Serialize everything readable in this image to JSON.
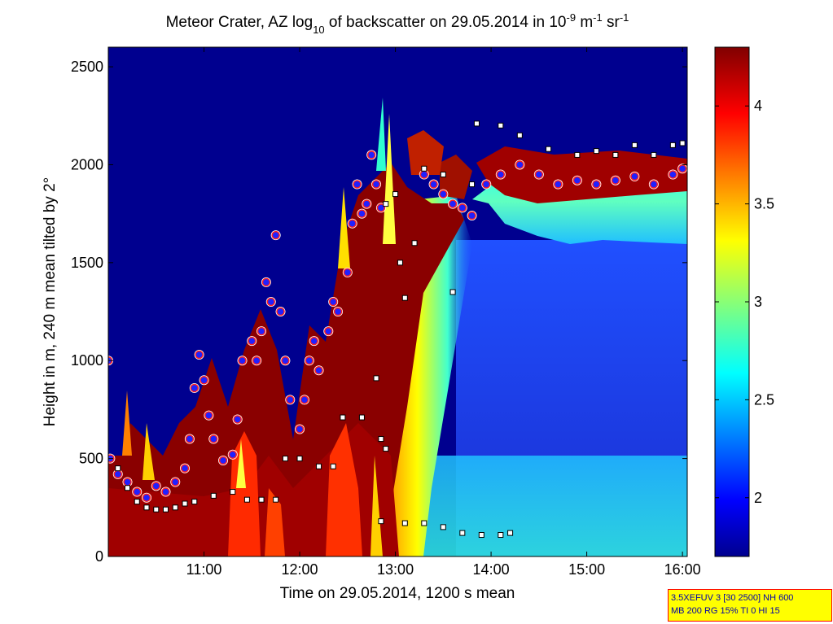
{
  "chart_data": {
    "type": "heatmap",
    "title": {
      "part1": "Meteor Crater, AZ log",
      "sub": "10",
      "part2": " of backscatter on 29.05.2014 in 10",
      "sup1": "-9",
      "part3": " m",
      "sup2": "-1",
      "part4": " sr",
      "sup3": "-1"
    },
    "xlabel": "Time on 29.05.2014, 1200 s mean",
    "ylabel": "Height in m, 240 m mean tilted by 2°",
    "xlim": [
      10.0,
      16.05
    ],
    "ylim": [
      0,
      2600
    ],
    "x_ticks": [
      {
        "value": 11,
        "label": "11:00"
      },
      {
        "value": 12,
        "label": "12:00"
      },
      {
        "value": 13,
        "label": "13:00"
      },
      {
        "value": 14,
        "label": "14:00"
      },
      {
        "value": 15,
        "label": "15:00"
      },
      {
        "value": 16,
        "label": "16:00"
      }
    ],
    "y_ticks": [
      {
        "value": 0,
        "label": "0"
      },
      {
        "value": 500,
        "label": "500"
      },
      {
        "value": 1000,
        "label": "1000"
      },
      {
        "value": 1500,
        "label": "1500"
      },
      {
        "value": 2000,
        "label": "2000"
      },
      {
        "value": 2500,
        "label": "2500"
      }
    ],
    "colorbar": {
      "range": [
        1.7,
        4.3
      ],
      "ticks": [
        {
          "value": 2,
          "label": "2"
        },
        {
          "value": 2.5,
          "label": "2.5"
        },
        {
          "value": 3,
          "label": "3"
        },
        {
          "value": 3.5,
          "label": "3.5"
        },
        {
          "value": 4,
          "label": "4"
        }
      ]
    },
    "series": [
      {
        "marker": "circle",
        "points": [
          [
            10.0,
            1000
          ],
          [
            10.02,
            500
          ],
          [
            10.1,
            420
          ],
          [
            10.2,
            380
          ],
          [
            10.3,
            330
          ],
          [
            10.4,
            300
          ],
          [
            10.5,
            360
          ],
          [
            10.6,
            330
          ],
          [
            10.7,
            380
          ],
          [
            10.8,
            450
          ],
          [
            10.85,
            600
          ],
          [
            10.9,
            860
          ],
          [
            10.95,
            1030
          ],
          [
            11.0,
            900
          ],
          [
            11.05,
            720
          ],
          [
            11.1,
            600
          ],
          [
            11.2,
            490
          ],
          [
            11.3,
            520
          ],
          [
            11.35,
            700
          ],
          [
            11.4,
            1000
          ],
          [
            11.5,
            1100
          ],
          [
            11.55,
            1000
          ],
          [
            11.6,
            1150
          ],
          [
            11.65,
            1400
          ],
          [
            11.7,
            1300
          ],
          [
            11.75,
            1640
          ],
          [
            11.8,
            1250
          ],
          [
            11.85,
            1000
          ],
          [
            11.9,
            800
          ],
          [
            12.0,
            650
          ],
          [
            12.05,
            800
          ],
          [
            12.1,
            1000
          ],
          [
            12.15,
            1100
          ],
          [
            12.2,
            950
          ],
          [
            12.3,
            1150
          ],
          [
            12.35,
            1300
          ],
          [
            12.4,
            1250
          ],
          [
            12.5,
            1450
          ],
          [
            12.55,
            1700
          ],
          [
            12.6,
            1900
          ],
          [
            12.65,
            1750
          ],
          [
            12.7,
            1800
          ],
          [
            12.75,
            2050
          ],
          [
            12.8,
            1900
          ],
          [
            12.85,
            1780
          ],
          [
            13.3,
            1950
          ],
          [
            13.4,
            1900
          ],
          [
            13.5,
            1850
          ],
          [
            13.6,
            1800
          ],
          [
            13.7,
            1780
          ],
          [
            13.8,
            1740
          ],
          [
            13.95,
            1900
          ],
          [
            14.1,
            1950
          ],
          [
            14.3,
            2000
          ],
          [
            14.5,
            1950
          ],
          [
            14.7,
            1900
          ],
          [
            14.9,
            1920
          ],
          [
            15.1,
            1900
          ],
          [
            15.3,
            1920
          ],
          [
            15.5,
            1940
          ],
          [
            15.7,
            1900
          ],
          [
            15.9,
            1950
          ],
          [
            16.0,
            1980
          ]
        ]
      },
      {
        "marker": "square",
        "points": [
          [
            10.1,
            450
          ],
          [
            10.2,
            350
          ],
          [
            10.3,
            280
          ],
          [
            10.4,
            250
          ],
          [
            10.5,
            240
          ],
          [
            10.6,
            240
          ],
          [
            10.7,
            250
          ],
          [
            10.8,
            270
          ],
          [
            10.9,
            280
          ],
          [
            11.1,
            310
          ],
          [
            11.3,
            330
          ],
          [
            11.45,
            290
          ],
          [
            11.6,
            290
          ],
          [
            11.75,
            290
          ],
          [
            11.85,
            500
          ],
          [
            12.0,
            500
          ],
          [
            12.2,
            460
          ],
          [
            12.35,
            460
          ],
          [
            12.45,
            710
          ],
          [
            12.65,
            710
          ],
          [
            12.8,
            910
          ],
          [
            12.85,
            600
          ],
          [
            12.9,
            550
          ],
          [
            12.9,
            1800
          ],
          [
            13.0,
            1850
          ],
          [
            13.05,
            1500
          ],
          [
            13.1,
            1320
          ],
          [
            13.2,
            1600
          ],
          [
            13.3,
            1980
          ],
          [
            13.5,
            1950
          ],
          [
            13.6,
            1350
          ],
          [
            13.8,
            1900
          ],
          [
            13.85,
            2210
          ],
          [
            14.1,
            2200
          ],
          [
            14.3,
            2150
          ],
          [
            14.6,
            2080
          ],
          [
            14.9,
            2050
          ],
          [
            15.1,
            2070
          ],
          [
            15.3,
            2050
          ],
          [
            15.5,
            2100
          ],
          [
            15.7,
            2050
          ],
          [
            15.9,
            2100
          ],
          [
            16.0,
            2110
          ],
          [
            12.85,
            180
          ],
          [
            13.1,
            170
          ],
          [
            13.3,
            170
          ],
          [
            13.5,
            150
          ],
          [
            13.7,
            120
          ],
          [
            13.9,
            110
          ],
          [
            14.1,
            110
          ],
          [
            14.2,
            120
          ]
        ]
      }
    ]
  },
  "info_box": {
    "line1": "3.5XEFUV 3 [30 2500] NH 600",
    "line2": "MB 200 RG 15% TI 0 HI 15"
  },
  "colors": {
    "deep_blue": "#00008f",
    "dark_red": "#800000",
    "red": "#ff0000",
    "yellow": "#ffff00",
    "cyan": "#00ffff",
    "marker_blue": "#2020ff",
    "marker_edge": "#ff2020"
  }
}
